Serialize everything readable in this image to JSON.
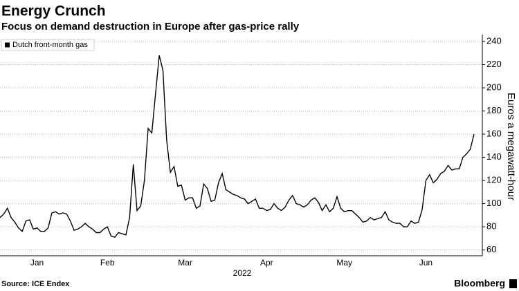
{
  "chart_data": {
    "type": "line",
    "title": "Energy Crunch",
    "subtitle": "Focus on demand destruction in Europe after gas-price rally",
    "ylabel": "Euros a megawatt-hour",
    "xlabel": "2022",
    "source": "Source: ICE Endex",
    "brand": "Bloomberg",
    "categories": [
      null,
      null,
      null,
      null,
      null,
      null,
      null,
      null,
      null,
      null,
      "Jan",
      null,
      null,
      null,
      null,
      null,
      null,
      null,
      null,
      null,
      null,
      null,
      null,
      null,
      null,
      null,
      null,
      null,
      null,
      "Feb",
      null,
      null,
      null,
      null,
      null,
      null,
      null,
      null,
      null,
      null,
      null,
      null,
      null,
      null,
      null,
      null,
      null,
      null,
      null,
      null,
      "Mar",
      null,
      null,
      null,
      null,
      null,
      null,
      null,
      null,
      null,
      null,
      null,
      null,
      null,
      null,
      null,
      null,
      null,
      null,
      null,
      null,
      null,
      "Apr",
      null,
      null,
      null,
      null,
      null,
      null,
      null,
      null,
      null,
      null,
      null,
      null,
      null,
      null,
      null,
      null,
      null,
      null,
      null,
      null,
      "May",
      null,
      null,
      null,
      null,
      null,
      null,
      null,
      null,
      null,
      null,
      null,
      null,
      null,
      null,
      null,
      null,
      null,
      null,
      null,
      null,
      null,
      "Jun",
      null,
      null,
      null,
      null,
      null,
      null,
      null,
      null,
      null,
      null,
      null,
      null,
      null
    ],
    "series": [
      {
        "name": "Dutch front-month gas",
        "color": "#000000",
        "values": [
          88,
          91,
          96,
          88,
          84,
          79,
          76,
          85,
          86,
          78,
          79,
          76,
          76,
          79,
          92,
          93,
          91,
          92,
          91,
          85,
          77,
          78,
          80,
          83,
          80,
          78,
          75,
          75,
          78,
          80,
          72,
          71,
          75,
          74,
          73,
          88,
          134,
          94,
          98,
          120,
          165,
          161,
          195,
          228,
          215,
          155,
          127,
          132,
          115,
          116,
          103,
          105,
          105,
          96,
          98,
          117,
          113,
          102,
          103,
          118,
          126,
          112,
          110,
          108,
          107,
          105,
          104,
          100,
          102,
          104,
          96,
          96,
          94,
          95,
          100,
          96,
          94,
          97,
          103,
          107,
          100,
          99,
          97,
          99,
          103,
          105,
          101,
          94,
          99,
          93,
          96,
          106,
          96,
          93,
          94,
          94,
          91,
          88,
          84,
          85,
          88,
          86,
          87,
          88,
          93,
          86,
          84,
          83,
          83,
          80,
          80,
          85,
          83,
          84,
          95,
          120,
          125,
          118,
          121,
          126,
          128,
          133,
          129,
          130,
          130,
          140,
          143,
          147,
          160
        ]
      }
    ],
    "ylim": [
      55,
      243
    ],
    "yticks": [
      60,
      80,
      100,
      120,
      140,
      160,
      180,
      200,
      220,
      240
    ],
    "y_axis_side": "right",
    "grid": true,
    "legend": "upper left"
  }
}
